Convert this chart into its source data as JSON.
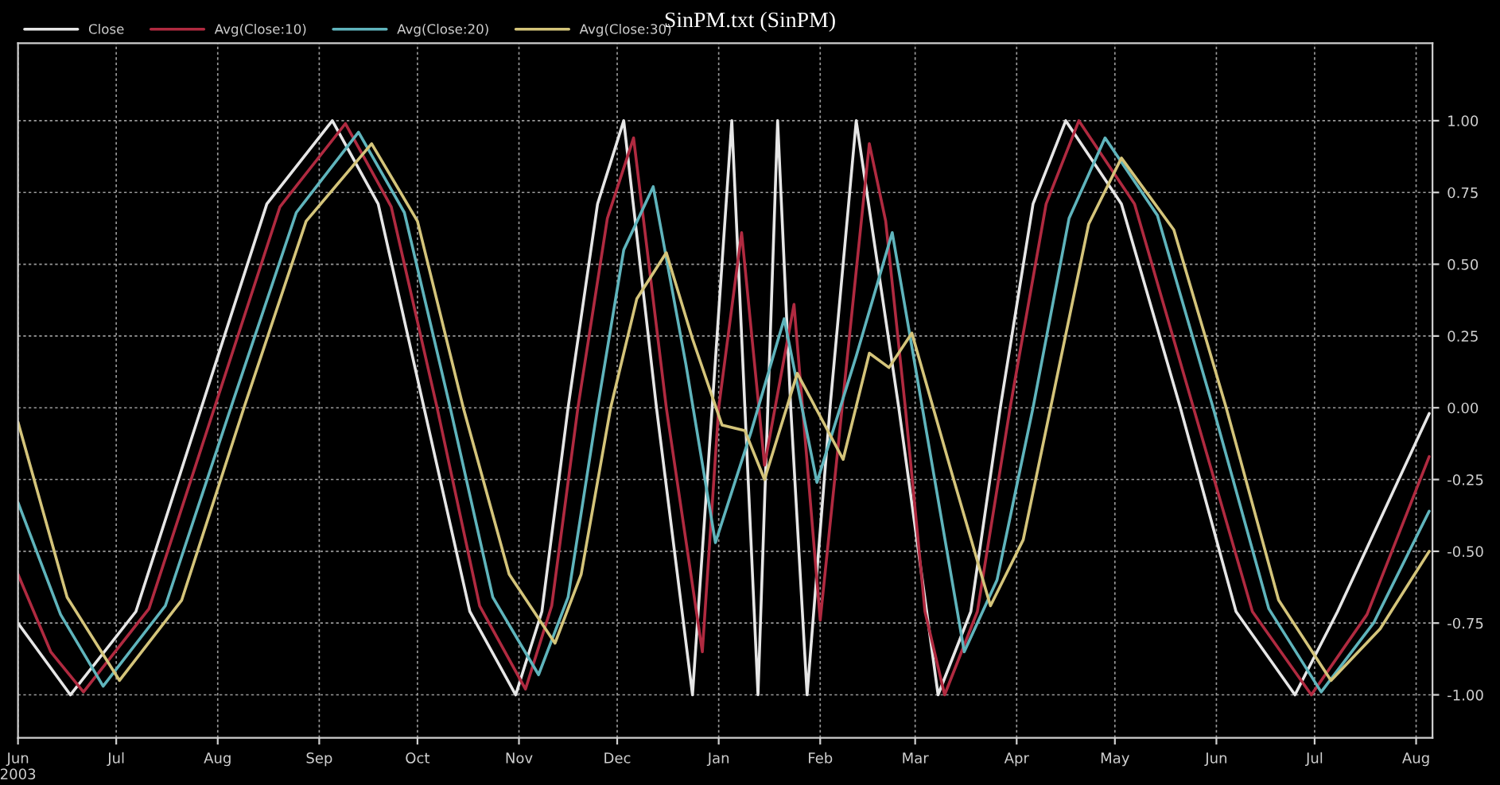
{
  "chart_data": {
    "type": "line",
    "title": "SinPM.txt (SinPM)",
    "xlim": [
      "2003-06-01",
      "2004-08-06"
    ],
    "xticks": [
      {
        "value": "2003-06-01",
        "label": "Jun\n2003"
      },
      {
        "value": "2003-07-01",
        "label": "Jul"
      },
      {
        "value": "2003-08-01",
        "label": "Aug"
      },
      {
        "value": "2003-09-01",
        "label": "Sep"
      },
      {
        "value": "2003-10-01",
        "label": "Oct"
      },
      {
        "value": "2003-11-01",
        "label": "Nov"
      },
      {
        "value": "2003-12-01",
        "label": "Dec"
      },
      {
        "value": "2004-01-01",
        "label": "Jan"
      },
      {
        "value": "2004-02-01",
        "label": "Feb"
      },
      {
        "value": "2004-03-01",
        "label": "Mar"
      },
      {
        "value": "2004-04-01",
        "label": "Apr"
      },
      {
        "value": "2004-05-01",
        "label": "May"
      },
      {
        "value": "2004-06-01",
        "label": "Jun"
      },
      {
        "value": "2004-07-01",
        "label": "Jul"
      },
      {
        "value": "2004-08-01",
        "label": "Aug"
      }
    ],
    "ylim": [
      -1.15,
      1.27
    ],
    "yticks": [
      {
        "value": 1,
        "label": "1.00"
      },
      {
        "value": 0.75,
        "label": "0.75"
      },
      {
        "value": 0.5,
        "label": "0.50"
      },
      {
        "value": 0.25,
        "label": "0.25"
      },
      {
        "value": 0,
        "label": "0.00"
      },
      {
        "value": -0.25,
        "label": "-0.25"
      },
      {
        "value": -0.5,
        "label": "-0.50"
      },
      {
        "value": -0.75,
        "label": "-0.75"
      },
      {
        "value": -1,
        "label": "-1.00"
      }
    ],
    "grid": true,
    "legend": "top left",
    "line_style": "solid",
    "marker": "none",
    "series": [
      {
        "name": "Close",
        "color": "#e6e6e6",
        "x": [
          "2003-06-01",
          "2003-06-17",
          "2003-07-07",
          "2003-07-27",
          "2003-08-16",
          "2003-09-05",
          "2003-09-19",
          "2003-10-03",
          "2003-10-17",
          "2003-10-31",
          "2003-11-08",
          "2003-11-16",
          "2003-11-25",
          "2003-12-03",
          "2003-12-13",
          "2003-12-24",
          "2003-12-30",
          "2004-01-05",
          "2004-01-09",
          "2004-01-13",
          "2004-01-16",
          "2004-01-19",
          "2004-01-23",
          "2004-01-28",
          "2004-02-04",
          "2004-02-12",
          "2004-02-25",
          "2004-03-08",
          "2004-03-18",
          "2004-03-27",
          "2004-04-06",
          "2004-04-16",
          "2004-05-03",
          "2004-05-21",
          "2004-06-07",
          "2004-06-25",
          "2004-07-08",
          "2004-08-05"
        ],
        "values": [
          -0.75,
          -1.0,
          -0.71,
          0,
          0.71,
          1.0,
          0.71,
          0,
          -0.71,
          -1.0,
          -0.71,
          0,
          0.71,
          1.0,
          0,
          -1.0,
          0,
          1.0,
          0,
          -1.0,
          0,
          1.0,
          0,
          -1.0,
          0,
          1.0,
          0,
          -1.0,
          -0.71,
          0,
          0.71,
          1.0,
          0.71,
          0,
          -0.71,
          -1.0,
          -0.71,
          -0.02
        ]
      },
      {
        "name": "Avg(Close:10)",
        "color": "#b02a40",
        "x": [
          "2003-06-01",
          "2003-06-11",
          "2003-06-21",
          "2003-07-11",
          "2003-07-31",
          "2003-08-20",
          "2003-09-09",
          "2003-09-23",
          "2003-10-07",
          "2003-10-20",
          "2003-11-03",
          "2003-11-11",
          "2003-11-19",
          "2003-11-28",
          "2003-12-06",
          "2003-12-16",
          "2003-12-27",
          "2004-01-01",
          "2004-01-08",
          "2004-01-15",
          "2004-01-24",
          "2004-02-01",
          "2004-02-16",
          "2004-02-21",
          "2004-02-27",
          "2004-03-04",
          "2004-03-10",
          "2004-03-20",
          "2004-03-30",
          "2004-04-10",
          "2004-04-20",
          "2004-05-07",
          "2004-05-25",
          "2004-06-12",
          "2004-06-30",
          "2004-07-17",
          "2004-08-05"
        ],
        "values": [
          -0.58,
          -0.85,
          -0.99,
          -0.7,
          0,
          0.7,
          0.99,
          0.7,
          0,
          -0.69,
          -0.98,
          -0.69,
          0,
          0.66,
          0.94,
          0,
          -0.85,
          0,
          0.61,
          -0.2,
          0.36,
          -0.74,
          0.92,
          0.65,
          0,
          -0.71,
          -1.0,
          -0.71,
          0,
          0.71,
          1.0,
          0.71,
          0,
          -0.71,
          -1.0,
          -0.72,
          -0.17
        ]
      },
      {
        "name": "Avg(Close:20)",
        "color": "#5fb4bc",
        "x": [
          "2003-06-01",
          "2003-06-14",
          "2003-06-27",
          "2003-07-16",
          "2003-08-05",
          "2003-08-25",
          "2003-09-13",
          "2003-09-27",
          "2003-10-11",
          "2003-10-24",
          "2003-11-07",
          "2003-11-16",
          "2003-11-25",
          "2003-12-03",
          "2003-12-12",
          "2003-12-22",
          "2003-12-31",
          "2004-01-11",
          "2004-01-21",
          "2004-01-31",
          "2004-02-12",
          "2004-02-23",
          "2004-03-05",
          "2004-03-16",
          "2004-03-26",
          "2004-04-06",
          "2004-04-17",
          "2004-04-28",
          "2004-05-14",
          "2004-05-31",
          "2004-06-17",
          "2004-07-03",
          "2004-07-19",
          "2004-08-05"
        ],
        "values": [
          -0.33,
          -0.72,
          -0.97,
          -0.69,
          0,
          0.68,
          0.96,
          0.68,
          0,
          -0.66,
          -0.93,
          -0.66,
          0,
          0.55,
          0.77,
          0.15,
          -0.47,
          -0.08,
          0.31,
          -0.26,
          0.18,
          0.61,
          -0.12,
          -0.85,
          -0.6,
          0,
          0.66,
          0.94,
          0.67,
          0,
          -0.7,
          -0.99,
          -0.75,
          -0.36
        ]
      },
      {
        "name": "Avg(Close:30)",
        "color": "#d4c47a",
        "x": [
          "2003-06-01",
          "2003-06-16",
          "2003-07-02",
          "2003-07-21",
          "2003-08-09",
          "2003-08-28",
          "2003-09-17",
          "2003-10-01",
          "2003-10-15",
          "2003-10-29",
          "2003-11-12",
          "2003-11-20",
          "2003-11-29",
          "2003-12-07",
          "2003-12-16",
          "2003-12-24",
          "2004-01-02",
          "2004-01-09",
          "2004-01-15",
          "2004-01-25",
          "2004-02-08",
          "2004-02-16",
          "2004-02-22",
          "2004-02-29",
          "2004-03-12",
          "2004-03-24",
          "2004-04-03",
          "2004-04-13",
          "2004-04-23",
          "2004-05-03",
          "2004-05-19",
          "2004-06-04",
          "2004-06-20",
          "2004-07-06",
          "2004-07-21",
          "2004-08-05"
        ],
        "values": [
          -0.05,
          -0.66,
          -0.95,
          -0.67,
          0,
          0.65,
          0.92,
          0.65,
          0,
          -0.58,
          -0.82,
          -0.58,
          0,
          0.38,
          0.54,
          0.24,
          -0.06,
          -0.08,
          -0.25,
          0.12,
          -0.18,
          0.19,
          0.14,
          0.26,
          -0.22,
          -0.69,
          -0.46,
          0.09,
          0.64,
          0.87,
          0.62,
          0,
          -0.67,
          -0.95,
          -0.77,
          -0.5
        ]
      }
    ]
  }
}
